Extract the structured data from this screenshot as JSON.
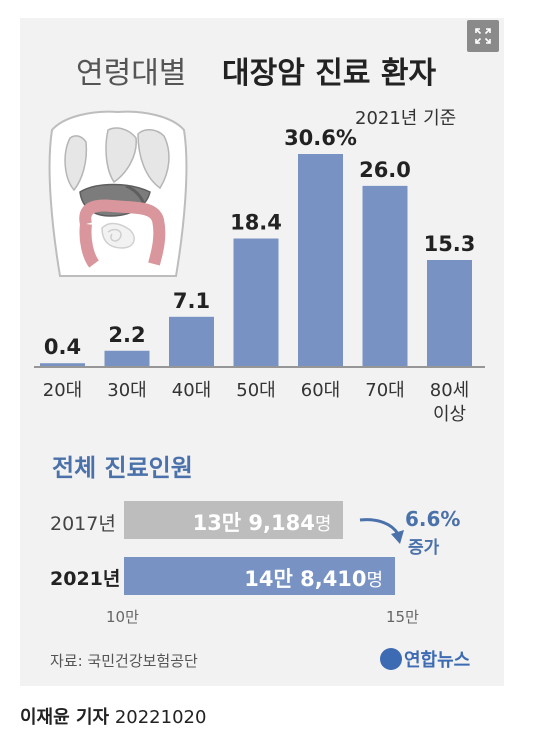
{
  "title": {
    "light": "연령대별",
    "bold": "대장암 진료 환자"
  },
  "basis": "2021년 기준",
  "chart_data": [
    {
      "type": "bar",
      "categories": [
        "20대",
        "30대",
        "40대",
        "50대",
        "60대",
        "70대",
        "80세\n이상"
      ],
      "values": [
        0.4,
        2.2,
        7.1,
        18.4,
        30.6,
        26.0,
        15.3
      ],
      "value_labels": [
        "0.4",
        "2.2",
        "7.1",
        "18.4",
        "30.6%",
        "26.0",
        "15.3"
      ],
      "ylim": [
        0,
        30.6
      ],
      "grid": false,
      "bar_color": "#7892c4"
    },
    {
      "type": "bar",
      "orientation": "horizontal",
      "title": "전체 진료인원",
      "categories": [
        "2017년",
        "2021년"
      ],
      "values": [
        139184,
        148410
      ],
      "value_labels": [
        "13만 9,184",
        "14만 8,410"
      ],
      "unit": "명",
      "xlim": [
        100000,
        150000
      ],
      "tick_labels": [
        "10만",
        "15만"
      ],
      "annotation": {
        "rate": "6.6%",
        "label": "증가"
      },
      "bar_colors": [
        "#bdbdbd",
        "#7892c4"
      ]
    }
  ],
  "source": "자료: 국민건강보험공단",
  "logo": "연합뉴스",
  "credit": {
    "name": "이재윤 기자",
    "date": "20221020"
  },
  "icons": {
    "expand": "expand-icon",
    "logo": "yonhap-logo-icon",
    "illustration": "torso-organs-illustration"
  }
}
